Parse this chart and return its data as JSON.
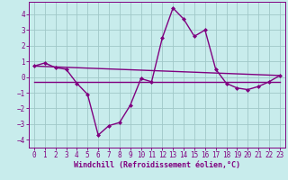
{
  "title": "",
  "xlabel": "Windchill (Refroidissement éolien,°C)",
  "ylabel": "",
  "bg_color": "#c8ecec",
  "line_color": "#800080",
  "grid_color": "#a0c8c8",
  "xlim": [
    -0.5,
    23.5
  ],
  "ylim": [
    -4.5,
    4.8
  ],
  "yticks": [
    -4,
    -3,
    -2,
    -1,
    0,
    1,
    2,
    3,
    4
  ],
  "xticks": [
    0,
    1,
    2,
    3,
    4,
    5,
    6,
    7,
    8,
    9,
    10,
    11,
    12,
    13,
    14,
    15,
    16,
    17,
    18,
    19,
    20,
    21,
    22,
    23
  ],
  "series1_x": [
    0,
    1,
    2,
    3,
    4,
    5,
    6,
    7,
    8,
    9,
    10,
    11,
    12,
    13,
    14,
    15,
    16,
    17,
    18,
    19,
    20,
    21,
    22,
    23
  ],
  "series1_y": [
    0.7,
    0.9,
    0.6,
    0.5,
    -0.4,
    -1.1,
    -3.7,
    -3.1,
    -2.9,
    -1.8,
    -0.1,
    -0.3,
    2.5,
    4.4,
    3.7,
    2.6,
    3.0,
    0.5,
    -0.4,
    -0.7,
    -0.8,
    -0.6,
    -0.3,
    0.1
  ],
  "series2_x": [
    0,
    23
  ],
  "series2_y": [
    0.7,
    0.1
  ],
  "series3_x": [
    0,
    23
  ],
  "series3_y": [
    -0.3,
    -0.3
  ],
  "font_color": "#800080",
  "marker": "D",
  "markersize": 2.0,
  "linewidth": 1.0,
  "tick_fontsize": 5.5,
  "xlabel_fontsize": 6.0
}
